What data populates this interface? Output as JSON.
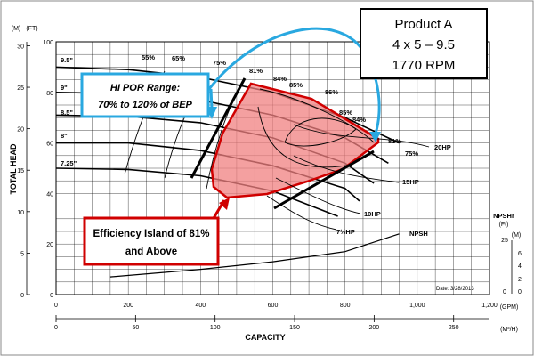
{
  "chart_data": {
    "type": "line",
    "title": {
      "product": "Product A",
      "size": "4 x 5 – 9.5",
      "speed": "1770 RPM"
    },
    "axes": {
      "x_label": "CAPACITY",
      "y_label": "TOTAL HEAD",
      "x_unit_gpm": "(GPM)",
      "x_unit_m3h": "(M³/H)",
      "y_unit_ft": "(FT)",
      "y_unit_m": "(M)",
      "npsh_axis_label": "NPSHr",
      "npsh_unit_ft": "(Ft)",
      "npsh_unit_m": "(M)",
      "x_gpm_ticks": [
        "0",
        "200",
        "400",
        "600",
        "800",
        "1,000",
        "1,200"
      ],
      "x_m3h_ticks": [
        "0",
        "50",
        "100",
        "150",
        "200",
        "250"
      ],
      "y_ft_ticks": [
        "0",
        "20",
        "40",
        "60",
        "80",
        "100"
      ],
      "y_m_ticks": [
        "0",
        "5",
        "10",
        "15",
        "20",
        "25",
        "30"
      ],
      "npsh_ft_ticks": [
        "0",
        "25"
      ],
      "npsh_m_ticks": [
        "0",
        "2",
        "4",
        "6"
      ],
      "x_range_gpm": [
        0,
        1200
      ],
      "y_range_ft": [
        0,
        100
      ],
      "grid": true
    },
    "impeller_curves": [
      {
        "name": "9.5\"",
        "points": [
          [
            0,
            90
          ],
          [
            200,
            89
          ],
          [
            400,
            86
          ],
          [
            600,
            80
          ],
          [
            800,
            70
          ],
          [
            950,
            60
          ]
        ]
      },
      {
        "name": "9\"",
        "points": [
          [
            0,
            80
          ],
          [
            200,
            79.5
          ],
          [
            400,
            77
          ],
          [
            600,
            71
          ],
          [
            800,
            62
          ],
          [
            920,
            52
          ]
        ]
      },
      {
        "name": "8.5\"",
        "points": [
          [
            0,
            71
          ],
          [
            200,
            70.5
          ],
          [
            400,
            68
          ],
          [
            600,
            62
          ],
          [
            800,
            52
          ],
          [
            880,
            44
          ]
        ]
      },
      {
        "name": "8\"",
        "points": [
          [
            0,
            60
          ],
          [
            200,
            60
          ],
          [
            400,
            57
          ],
          [
            600,
            51
          ],
          [
            800,
            42
          ],
          [
            840,
            37
          ]
        ]
      },
      {
        "name": "7.25\"",
        "points": [
          [
            0,
            50
          ],
          [
            200,
            49.5
          ],
          [
            400,
            47
          ],
          [
            600,
            41
          ],
          [
            780,
            31
          ]
        ]
      }
    ],
    "efficiency_labels": [
      "55%",
      "65%",
      "75%",
      "81%",
      "84%",
      "85%",
      "86%",
      "85%",
      "84%",
      "81%",
      "75%"
    ],
    "power_labels": [
      "20HP",
      "15HP",
      "10HP",
      "7½HP"
    ],
    "npsh_label": "NPSH",
    "npsh_curve": [
      [
        150,
        7
      ],
      [
        400,
        10
      ],
      [
        600,
        13
      ],
      [
        800,
        17
      ],
      [
        950,
        24
      ]
    ],
    "annotations": {
      "por": [
        "HI POR Range:",
        "70% to 120% of BEP"
      ],
      "island": [
        "Efficiency Island of 81%",
        "and Above"
      ],
      "date": "Date: 3/28/2013"
    }
  }
}
